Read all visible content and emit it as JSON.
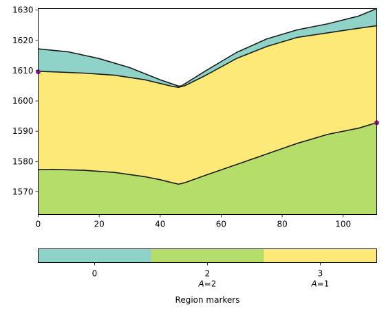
{
  "chart_data": [
    {
      "type": "area",
      "title": "",
      "xlabel": "",
      "ylabel": "",
      "xlim": [
        0,
        111
      ],
      "ylim": [
        1562.5,
        1630.5
      ],
      "x_ticks": [
        0,
        20,
        40,
        60,
        80,
        100
      ],
      "y_ticks": [
        1570,
        1580,
        1590,
        1600,
        1610,
        1620,
        1630
      ],
      "grid": false,
      "boundaries": [
        {
          "name": "surface",
          "x": [
            0,
            10,
            20,
            30,
            40,
            46,
            47,
            55,
            65,
            75,
            85,
            95,
            105,
            111
          ],
          "y": [
            1617.2,
            1616.2,
            1614.0,
            1611.0,
            1607.0,
            1604.9,
            1605.0,
            1610.0,
            1616.0,
            1620.5,
            1623.5,
            1625.5,
            1628.0,
            1630.5
          ]
        },
        {
          "name": "upper-interface",
          "x": [
            0,
            5,
            15,
            25,
            35,
            44,
            46,
            48,
            55,
            65,
            75,
            85,
            95,
            105,
            111
          ],
          "y": [
            1609.8,
            1609.6,
            1609.2,
            1608.5,
            1607.0,
            1604.8,
            1604.5,
            1605.0,
            1608.5,
            1614.0,
            1618.0,
            1621.0,
            1622.5,
            1624.0,
            1624.8
          ]
        },
        {
          "name": "lower-interface",
          "x": [
            0,
            5,
            15,
            25,
            35,
            40,
            46,
            48,
            55,
            65,
            75,
            85,
            95,
            105,
            111
          ],
          "y": [
            1577.3,
            1577.4,
            1577.1,
            1576.4,
            1575.0,
            1574.0,
            1572.5,
            1573.0,
            1575.5,
            1579.0,
            1582.5,
            1586.0,
            1589.0,
            1591.0,
            1592.8
          ]
        }
      ],
      "bottom": 1562.5,
      "regions": [
        {
          "marker": "0",
          "between": [
            "upper-interface",
            "surface"
          ],
          "color": "#8fd3c8"
        },
        {
          "marker": "3",
          "between": [
            "lower-interface",
            "upper-interface"
          ],
          "color": "#fde977"
        },
        {
          "marker": "2",
          "between": [
            "bottom",
            "lower-interface"
          ],
          "color": "#b5dd69"
        }
      ],
      "markers": [
        {
          "x": 0,
          "y": 1609.6,
          "color": "#b100b1"
        },
        {
          "x": 111,
          "y": 1592.8,
          "color": "#b100b1"
        }
      ],
      "edge_color": "#1a1a1a"
    },
    {
      "type": "colorbar",
      "label": "Region markers",
      "segments": [
        {
          "tick": "0",
          "sublabel": "",
          "color": "#8fd3c8"
        },
        {
          "tick": "2",
          "sublabel": "A=2",
          "color": "#b5dd69"
        },
        {
          "tick": "3",
          "sublabel": "A=1",
          "color": "#fde977"
        }
      ]
    }
  ]
}
